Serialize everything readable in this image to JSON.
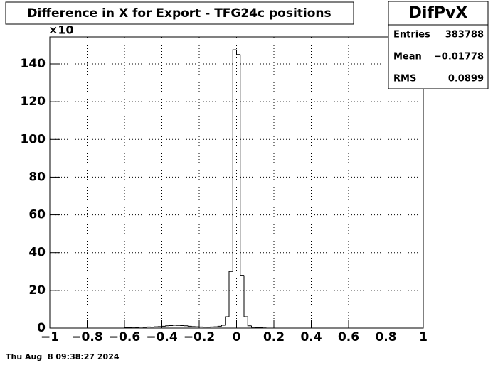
{
  "chart_data": {
    "type": "histogram",
    "title": "Difference in X for Export - TFG24c positions",
    "y_multiplier": "×10",
    "stats": {
      "name": "DifPvX",
      "rows": [
        [
          "Entries",
          "383788"
        ],
        [
          "Mean",
          "−0.01778"
        ],
        [
          "RMS",
          "0.0899"
        ]
      ]
    },
    "timestamp": "Thu Aug  8 09:38:27 2024",
    "bins": [
      -1,
      -0.98,
      -0.96,
      -0.94,
      -0.92,
      -0.9,
      -0.88,
      -0.86,
      -0.84,
      -0.82,
      -0.8,
      -0.78,
      -0.76,
      -0.74,
      -0.72,
      -0.7,
      -0.68,
      -0.66,
      -0.64,
      -0.62,
      -0.6,
      -0.58,
      -0.56,
      -0.54,
      -0.52,
      -0.5,
      -0.48,
      -0.46,
      -0.44,
      -0.42,
      -0.4,
      -0.38,
      -0.36,
      -0.34,
      -0.32,
      -0.3,
      -0.28,
      -0.26,
      -0.24,
      -0.22,
      -0.2,
      -0.18,
      -0.16,
      -0.14,
      -0.12,
      -0.1,
      -0.08,
      -0.06,
      -0.04,
      -0.02,
      0,
      0.02,
      0.04,
      0.06,
      0.08,
      0.1,
      0.12,
      0.14,
      0.16,
      0.18,
      0.2,
      0.22,
      0.24,
      0.26,
      0.28,
      0.3,
      0.32,
      0.34,
      0.36,
      0.38,
      0.4,
      0.42,
      0.44,
      0.46,
      0.48,
      0.5,
      0.52,
      0.54,
      0.56,
      0.58,
      0.6,
      0.62,
      0.64,
      0.66,
      0.68,
      0.7,
      0.72,
      0.74,
      0.76,
      0.78,
      0.8,
      0.82,
      0.84,
      0.86,
      0.88,
      0.9,
      0.92,
      0.94,
      0.96,
      0.98,
      1
    ],
    "values": [
      0,
      0,
      0,
      0,
      0,
      0,
      0,
      0,
      0,
      0,
      0,
      0,
      0,
      0,
      0,
      0,
      0,
      0,
      0,
      0,
      0.2,
      0.3,
      0.4,
      0.3,
      0.5,
      0.4,
      0.6,
      0.5,
      0.7,
      0.8,
      1.0,
      1.2,
      1.3,
      1.5,
      1.4,
      1.3,
      1.2,
      1.0,
      0.8,
      0.7,
      0.6,
      0.5,
      0.5,
      0.6,
      0.7,
      1.0,
      1.5,
      6,
      30,
      147.5,
      145,
      28,
      6,
      1.2,
      0.4,
      0.3,
      0.2,
      0.1,
      0,
      0,
      0,
      0,
      0,
      0,
      0,
      0,
      0,
      0,
      0,
      0,
      0,
      0,
      0,
      0,
      0,
      0,
      0,
      0,
      0,
      0,
      0,
      0,
      0,
      0,
      0,
      0,
      0,
      0,
      0,
      0,
      0,
      0,
      0,
      0,
      0,
      0,
      0,
      0,
      0,
      0
    ],
    "color": "#000000",
    "xlim": [
      -1,
      1
    ],
    "ylim": [
      0,
      154.3
    ],
    "xticks": [
      {
        "value": -1,
        "label": "−1"
      },
      {
        "value": -0.8,
        "label": "−0.8"
      },
      {
        "value": -0.6,
        "label": "−0.6"
      },
      {
        "value": -0.4,
        "label": "−0.4"
      },
      {
        "value": -0.2,
        "label": "−0.2"
      },
      0,
      0.2,
      0.4,
      0.6,
      0.8,
      1
    ],
    "yticks": [
      0,
      20,
      40,
      60,
      80,
      100,
      120,
      140
    ],
    "grid": true
  }
}
